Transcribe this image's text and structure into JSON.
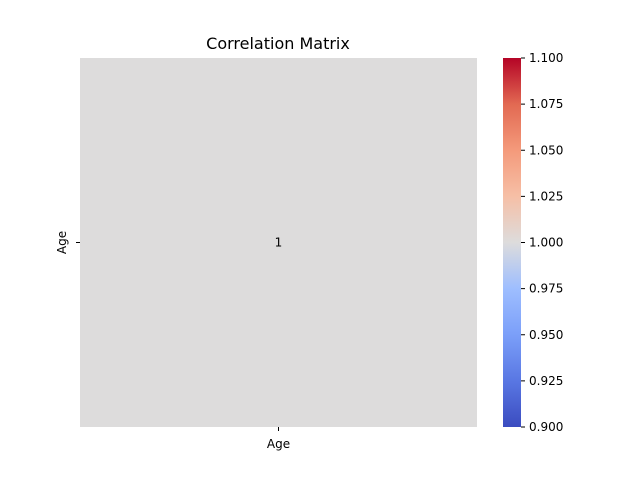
{
  "chart_data": {
    "type": "heatmap",
    "title": "Correlation Matrix",
    "x_labels": [
      "Age"
    ],
    "y_labels": [
      "Age"
    ],
    "values": [
      [
        1
      ]
    ],
    "annotations": [
      [
        "1"
      ]
    ],
    "colormap": "coolwarm",
    "colorbar": {
      "min": 0.9,
      "max": 1.1,
      "ticks": [
        "0.900",
        "0.925",
        "0.950",
        "0.975",
        "1.000",
        "1.025",
        "1.050",
        "1.075",
        "1.100"
      ]
    }
  },
  "colors": {
    "cell": "#dddcdc",
    "low": "#3b4cc0",
    "mid": "#dddcdc",
    "high": "#b40426"
  }
}
